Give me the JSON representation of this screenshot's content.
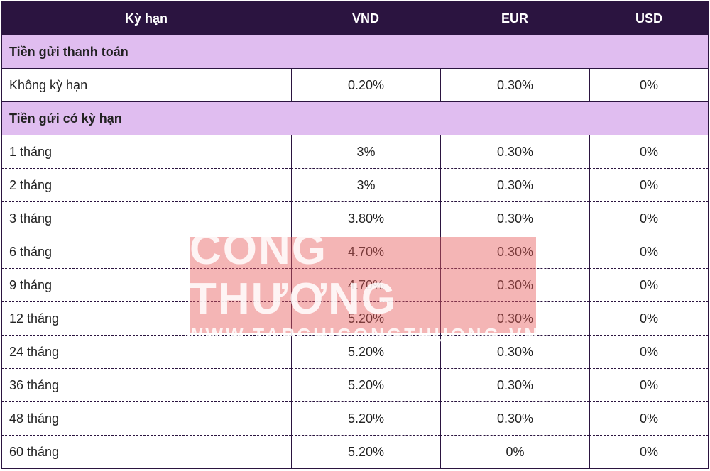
{
  "table": {
    "header": [
      "Kỳ hạn",
      "VND",
      "EUR",
      "USD"
    ],
    "sections": [
      {
        "title": "Tiền gửi thanh toán",
        "rows": [
          [
            "Không kỳ hạn",
            "0.20%",
            "0.30%",
            "0%"
          ]
        ]
      },
      {
        "title": "Tiền gửi có kỳ hạn",
        "rows": [
          [
            "1 tháng",
            "3%",
            "0.30%",
            "0%"
          ],
          [
            "2 tháng",
            "3%",
            "0.30%",
            "0%"
          ],
          [
            "3 tháng",
            "3.80%",
            "0.30%",
            "0%"
          ],
          [
            "6 tháng",
            "4.70%",
            "0.30%",
            "0%"
          ],
          [
            "9 tháng",
            "4.70%",
            "0.30%",
            "0%"
          ],
          [
            "12 tháng",
            "5.20%",
            "0.30%",
            "0%"
          ],
          [
            "24 tháng",
            "5.20%",
            "0.30%",
            "0%"
          ],
          [
            "36 tháng",
            "5.20%",
            "0.30%",
            "0%"
          ],
          [
            "48 tháng",
            "5.20%",
            "0.30%",
            "0%"
          ],
          [
            "60 tháng",
            "5.20%",
            "0%",
            "0%"
          ]
        ]
      }
    ]
  },
  "watermark": {
    "title": "CÔNG THƯƠNG",
    "url": "WWW.TAPCHICONGTHUONG.VN"
  }
}
